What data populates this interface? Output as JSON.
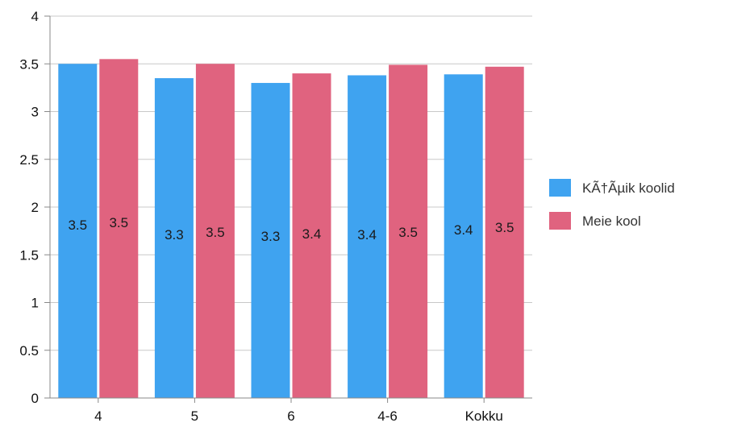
{
  "chart_data": {
    "type": "bar",
    "title": "",
    "xlabel": "",
    "ylabel": "",
    "categories": [
      "4",
      "5",
      "6",
      "4-6",
      "Kokku"
    ],
    "series": [
      {
        "name": "KÃ†Ãµik koolid",
        "color": "#3fa3f0",
        "values": [
          3.5,
          3.35,
          3.3,
          3.38,
          3.39
        ],
        "labels": [
          "3.5",
          "3.3",
          "3.3",
          "3.4",
          "3.4"
        ]
      },
      {
        "name": "Meie kool",
        "color": "#e0637f",
        "values": [
          3.55,
          3.5,
          3.4,
          3.49,
          3.47
        ],
        "labels": [
          "3.5",
          "3.5",
          "3.4",
          "3.5",
          "3.5"
        ]
      }
    ],
    "ylim": [
      0,
      4
    ],
    "yticks": [
      0,
      0.5,
      1,
      1.5,
      2,
      2.5,
      3,
      3.5,
      4
    ],
    "ytick_labels": [
      "0",
      "0.5",
      "1",
      "1.5",
      "2",
      "2.5",
      "3",
      "3.5",
      "4"
    ],
    "grid": true,
    "legend_position": "right"
  }
}
